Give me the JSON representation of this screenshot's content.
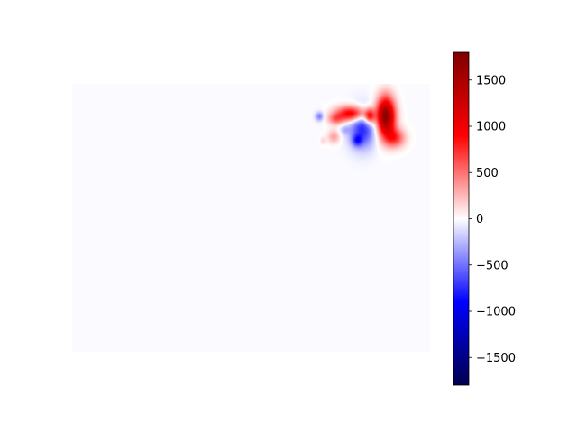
{
  "chart_data": {
    "type": "heatmap",
    "title": "",
    "xlabel": "",
    "ylabel": "",
    "axes_visible": false,
    "colormap": "seismic",
    "colormap_stops": [
      {
        "v": 0.0,
        "color": "#00004c"
      },
      {
        "v": 0.25,
        "color": "#0000ff"
      },
      {
        "v": 0.5,
        "color": "#ffffff"
      },
      {
        "v": 0.75,
        "color": "#ff0000"
      },
      {
        "v": 1.0,
        "color": "#800000"
      }
    ],
    "background_value": -15,
    "zlim": [
      -1800,
      1800
    ],
    "colorbar": {
      "ticks": [
        -1500,
        -1000,
        -500,
        0,
        500,
        1000,
        1500
      ],
      "tick_labels": [
        "−1500",
        "−1000",
        "−500",
        "0",
        "500",
        "1000",
        "1500"
      ]
    },
    "blobs": [
      {
        "cx": 0.875,
        "cy": 0.12,
        "sx": 0.018,
        "sy": 0.05,
        "v": 1750
      },
      {
        "cx": 0.9,
        "cy": 0.2,
        "sx": 0.02,
        "sy": 0.025,
        "v": 700
      },
      {
        "cx": 0.78,
        "cy": 0.11,
        "sx": 0.03,
        "sy": 0.02,
        "v": 1100
      },
      {
        "cx": 0.83,
        "cy": 0.12,
        "sx": 0.01,
        "sy": 0.02,
        "v": 900
      },
      {
        "cx": 0.81,
        "cy": 0.165,
        "sx": 0.025,
        "sy": 0.05,
        "v": -750
      },
      {
        "cx": 0.795,
        "cy": 0.21,
        "sx": 0.01,
        "sy": 0.015,
        "v": -500
      },
      {
        "cx": 0.735,
        "cy": 0.13,
        "sx": 0.015,
        "sy": 0.015,
        "v": 450
      },
      {
        "cx": 0.73,
        "cy": 0.195,
        "sx": 0.012,
        "sy": 0.018,
        "v": 350
      },
      {
        "cx": 0.69,
        "cy": 0.12,
        "sx": 0.008,
        "sy": 0.012,
        "v": -450
      },
      {
        "cx": 0.76,
        "cy": 0.17,
        "sx": 0.01,
        "sy": 0.012,
        "v": -200
      },
      {
        "cx": 0.7,
        "cy": 0.21,
        "sx": 0.006,
        "sy": 0.01,
        "v": 150
      }
    ]
  }
}
